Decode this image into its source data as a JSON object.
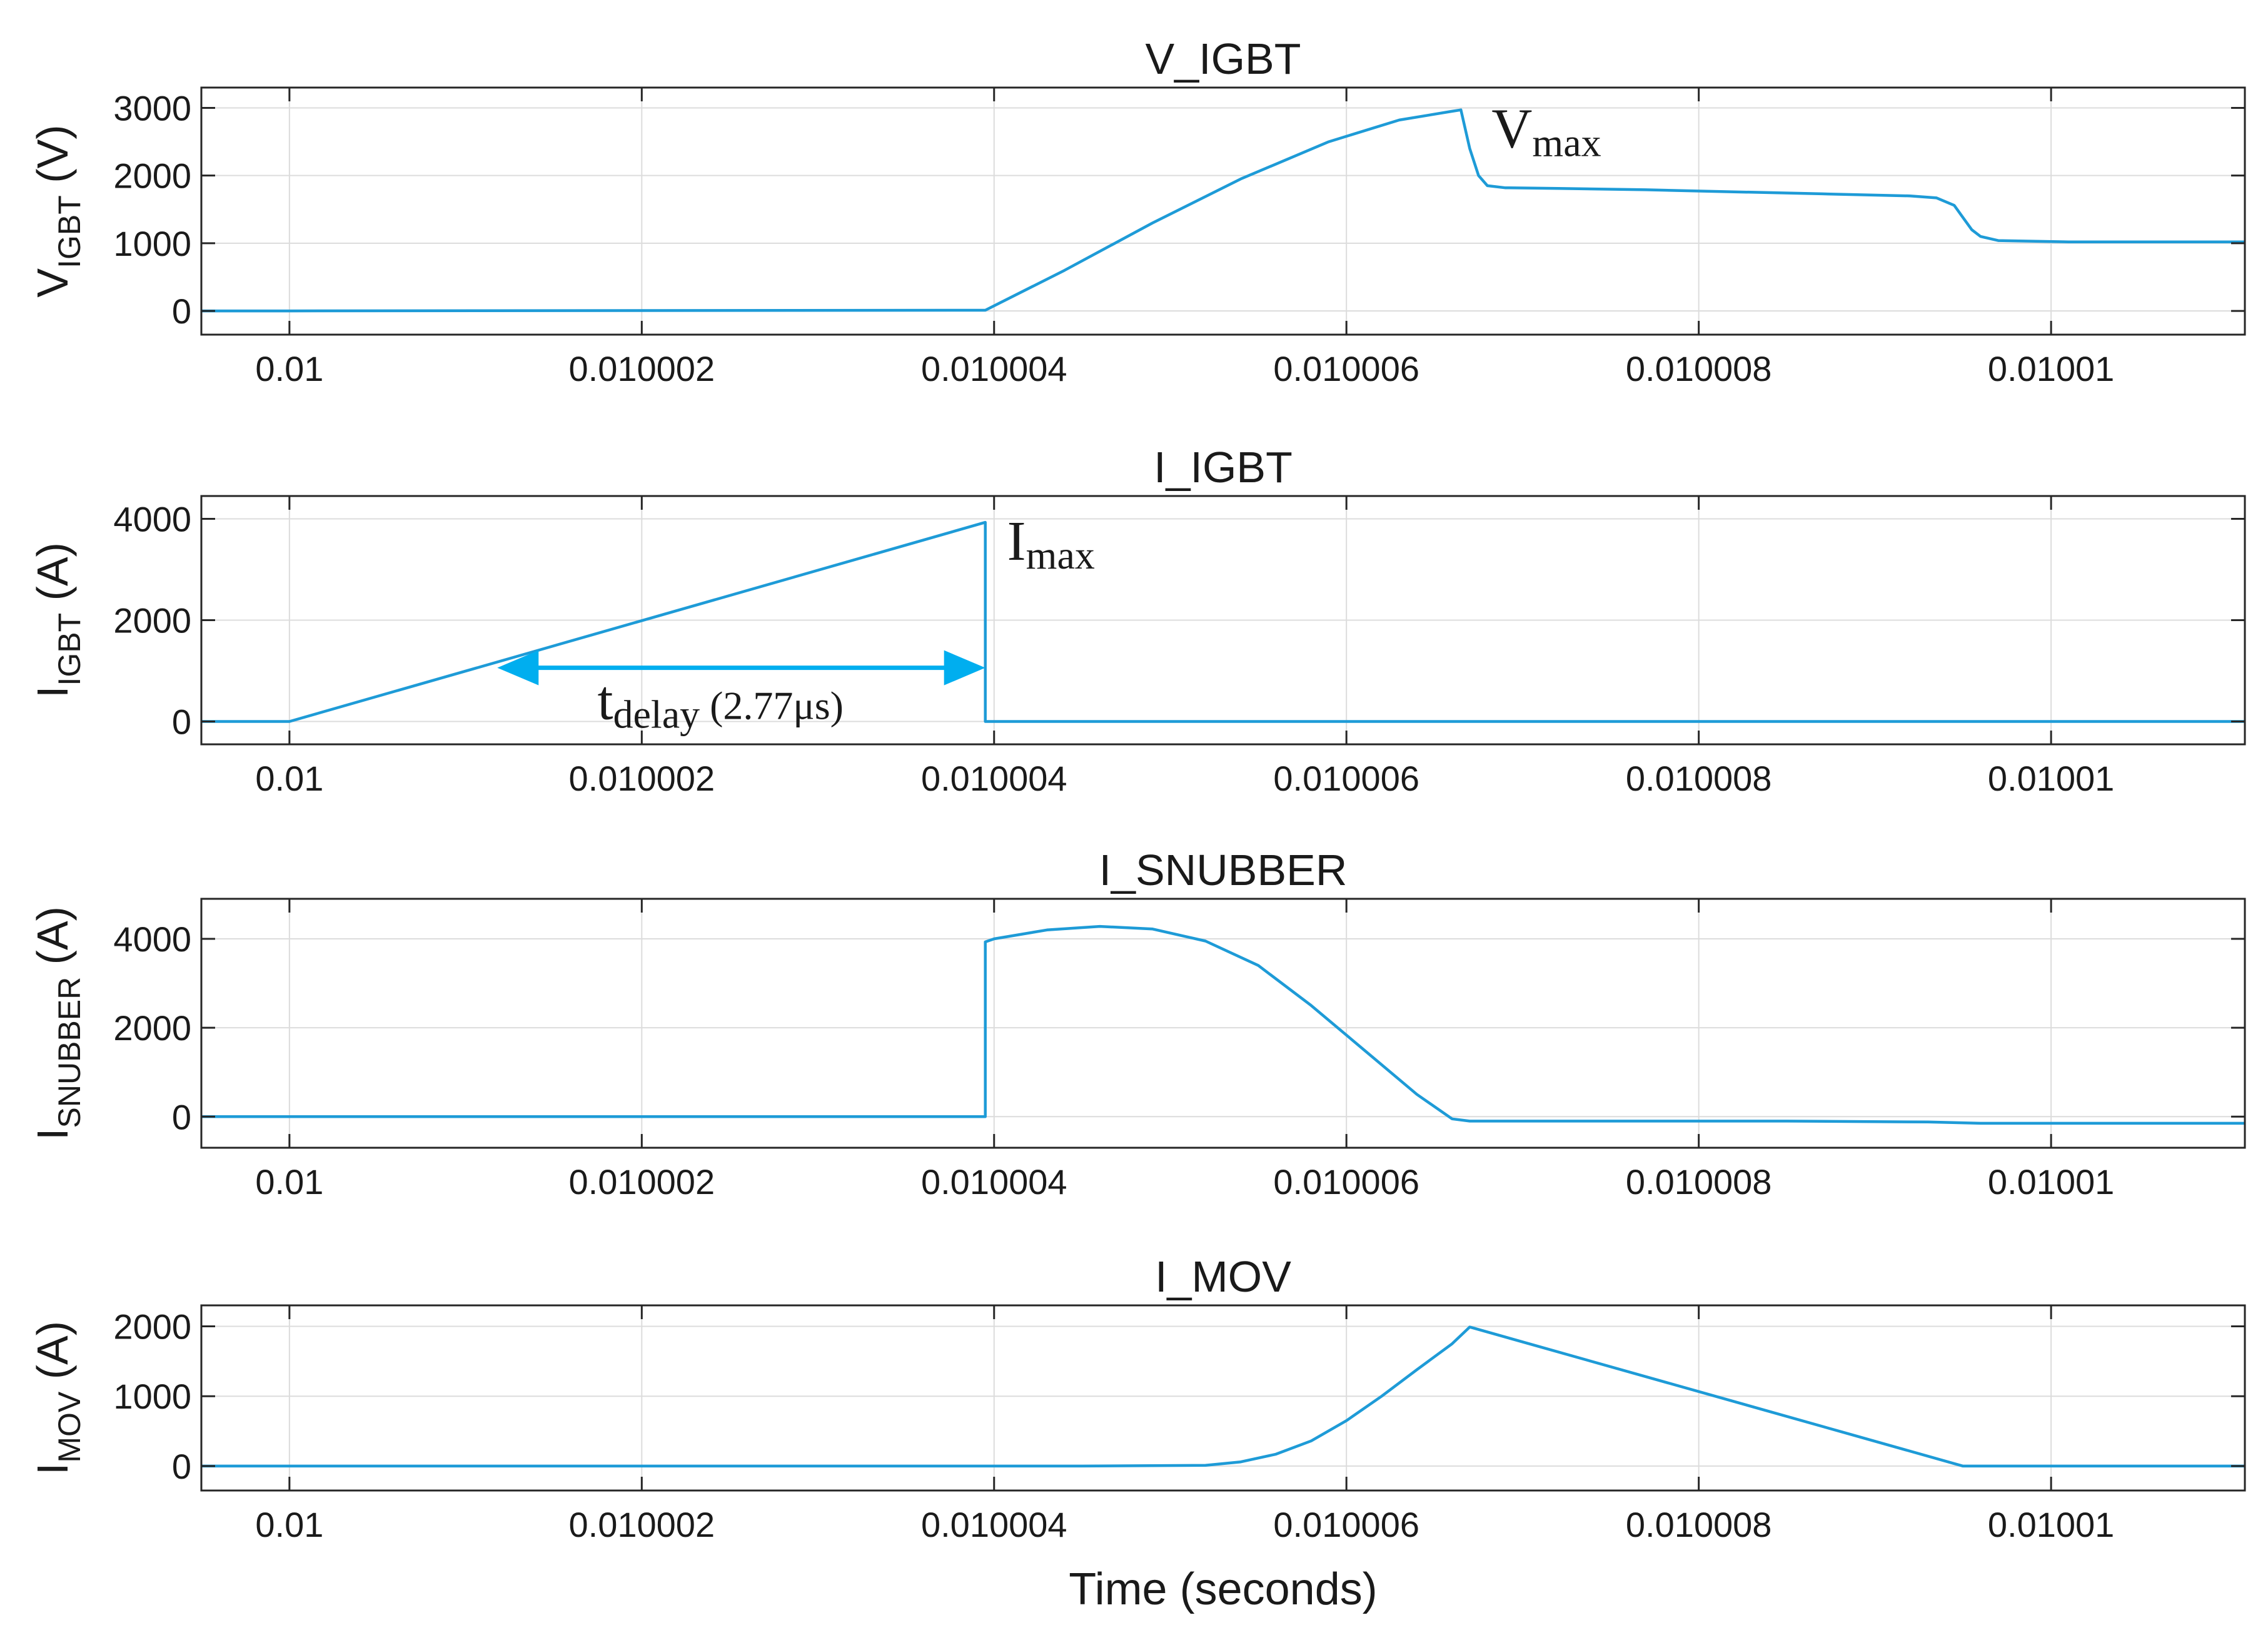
{
  "chart_data": [
    {
      "type": "line",
      "title": "V_IGBT",
      "ylabel_main": "V",
      "ylabel_sub": "IGBT",
      "ylabel_unit": " (V)",
      "xlim": [
        0.0099995,
        0.0100111
      ],
      "ylim": [
        -350,
        3300
      ],
      "yticks": [
        0,
        1000,
        2000,
        3000
      ],
      "yticklabels": [
        "0",
        "1000",
        "2000",
        "3000"
      ],
      "xticks": [
        0.01,
        0.010002,
        0.010004,
        0.010006,
        0.010008,
        0.01001
      ],
      "xticklabels": [
        "0.01",
        "0.010002",
        "0.010004",
        "0.010006",
        "0.010008",
        "0.01001"
      ],
      "grid": true,
      "color": "#1e9bd7",
      "series": [
        {
          "x": [
            0.0099995,
            0.01,
            0.01000395,
            0.0100044,
            0.0100049,
            0.0100054,
            0.0100059,
            0.0100063,
            0.0100066,
            0.01000665,
            0.0100067,
            0.01000675,
            0.0100068,
            0.0100069,
            0.0100072,
            0.0100077,
            0.0100082,
            0.0100087,
            0.0100092,
            0.01000935,
            0.01000945,
            0.0100095,
            0.01000955,
            0.0100096,
            0.0100097,
            0.0100101,
            0.0100106,
            0.0100111
          ],
          "y": [
            0,
            0,
            10,
            600,
            1300,
            1950,
            2500,
            2820,
            2950,
            2970,
            2400,
            2000,
            1850,
            1820,
            1810,
            1790,
            1760,
            1730,
            1700,
            1670,
            1560,
            1380,
            1200,
            1100,
            1040,
            1020,
            1020,
            1020
          ]
        }
      ],
      "annotations": [
        {
          "main": "V",
          "sub": "max",
          "x": 0.0100067,
          "y": 2970
        }
      ]
    },
    {
      "type": "line",
      "title": "I_IGBT",
      "ylabel_main": "I",
      "ylabel_sub": "IGBT",
      "ylabel_unit": " (A)",
      "xlim": [
        0.0099995,
        0.0100111
      ],
      "ylim": [
        -450,
        4450
      ],
      "yticks": [
        0,
        2000,
        4000
      ],
      "yticklabels": [
        "0",
        "2000",
        "4000"
      ],
      "xticks": [
        0.01,
        0.010002,
        0.010004,
        0.010006,
        0.010008,
        0.01001
      ],
      "xticklabels": [
        "0.01",
        "0.010002",
        "0.010004",
        "0.010006",
        "0.010008",
        "0.01001"
      ],
      "grid": true,
      "color": "#1e9bd7",
      "series": [
        {
          "x": [
            0.0099995,
            0.01,
            0.01000395,
            0.01000395,
            0.0100111
          ],
          "y": [
            0,
            0,
            3930,
            0,
            0
          ]
        }
      ],
      "annotations": [
        {
          "main": "I",
          "sub": "max",
          "x": 0.01000395,
          "y": 3930
        },
        {
          "main": "t",
          "sub": "delay",
          "text": "(2.77μs)",
          "x_start": 0.01000118,
          "x_end": 0.01000395,
          "y": 1060
        }
      ],
      "arrow_color": "#00aeef"
    },
    {
      "type": "line",
      "title": "I_SNUBBER",
      "ylabel_main": "I",
      "ylabel_sub": "SNUBBER",
      "ylabel_unit": " (A)",
      "xlim": [
        0.0099995,
        0.0100111
      ],
      "ylim": [
        -700,
        4900
      ],
      "yticks": [
        0,
        2000,
        4000
      ],
      "yticklabels": [
        "0",
        "2000",
        "4000"
      ],
      "xticks": [
        0.01,
        0.010002,
        0.010004,
        0.010006,
        0.010008,
        0.01001
      ],
      "xticklabels": [
        "0.01",
        "0.010002",
        "0.010004",
        "0.010006",
        "0.010008",
        "0.01001"
      ],
      "grid": true,
      "color": "#1e9bd7",
      "series": [
        {
          "x": [
            0.0099995,
            0.01,
            0.01000395,
            0.01000395,
            0.010004,
            0.0100043,
            0.0100046,
            0.0100049,
            0.0100052,
            0.0100055,
            0.0100058,
            0.0100061,
            0.0100064,
            0.0100066,
            0.0100067,
            0.0100075,
            0.0100085,
            0.0100093,
            0.0100096,
            0.0100103,
            0.0100111
          ],
          "y": [
            0,
            0,
            0,
            3930,
            4000,
            4200,
            4280,
            4220,
            3950,
            3400,
            2500,
            1500,
            500,
            -50,
            -100,
            -100,
            -100,
            -120,
            -150,
            -150,
            -150
          ]
        }
      ],
      "annotations": []
    },
    {
      "type": "line",
      "title": "I_MOV",
      "ylabel_main": "I",
      "ylabel_sub": "MOV",
      "ylabel_unit": " (A)",
      "xlabel": "Time (seconds)",
      "xlim": [
        0.0099995,
        0.0100111
      ],
      "ylim": [
        -350,
        2300
      ],
      "yticks": [
        0,
        1000,
        2000
      ],
      "yticklabels": [
        "0",
        "1000",
        "2000"
      ],
      "xticks": [
        0.01,
        0.010002,
        0.010004,
        0.010006,
        0.010008,
        0.01001
      ],
      "xticklabels": [
        "0.01",
        "0.010002",
        "0.010004",
        "0.010006",
        "0.010008",
        "0.01001"
      ],
      "grid": true,
      "color": "#1e9bd7",
      "series": [
        {
          "x": [
            0.0099995,
            0.01,
            0.0100045,
            0.0100052,
            0.0100054,
            0.0100056,
            0.0100058,
            0.010006,
            0.0100062,
            0.0100064,
            0.0100066,
            0.0100067,
            0.0100095,
            0.0100111
          ],
          "y": [
            0,
            0,
            0,
            10,
            60,
            170,
            360,
            650,
            1000,
            1380,
            1750,
            1990,
            0,
            0
          ]
        }
      ],
      "annotations": []
    }
  ]
}
